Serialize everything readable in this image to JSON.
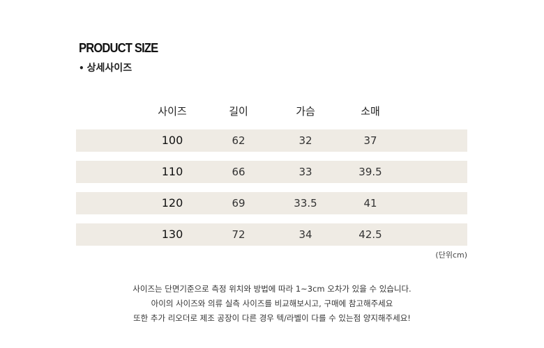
{
  "title": "PRODUCT SIZE",
  "subtitle": {
    "bullet": "•",
    "text": "상세사이즈"
  },
  "table": {
    "headers": [
      "사이즈",
      "길이",
      "가슴",
      "소매"
    ],
    "rows": [
      [
        "100",
        "62",
        "32",
        "37"
      ],
      [
        "110",
        "66",
        "33",
        "39.5"
      ],
      [
        "120",
        "69",
        "33.5",
        "41"
      ],
      [
        "130",
        "72",
        "34",
        "42.5"
      ]
    ],
    "row_color": "#efebe4"
  },
  "unit_note": "(단위cm)",
  "notes": [
    "사이즈는 단면기준으로 측정 위치와 방법에 따라 1~3cm 오차가 있을 수 있습니다.",
    "아이의 사이즈와 의류 실측 사이즈를 비교해보시고, 구매에 참고해주세요",
    "또한 추가 리오더로 제조 공장이 다른 경우 텍/라벨이 다를 수 있는점 양지해주세요!"
  ]
}
